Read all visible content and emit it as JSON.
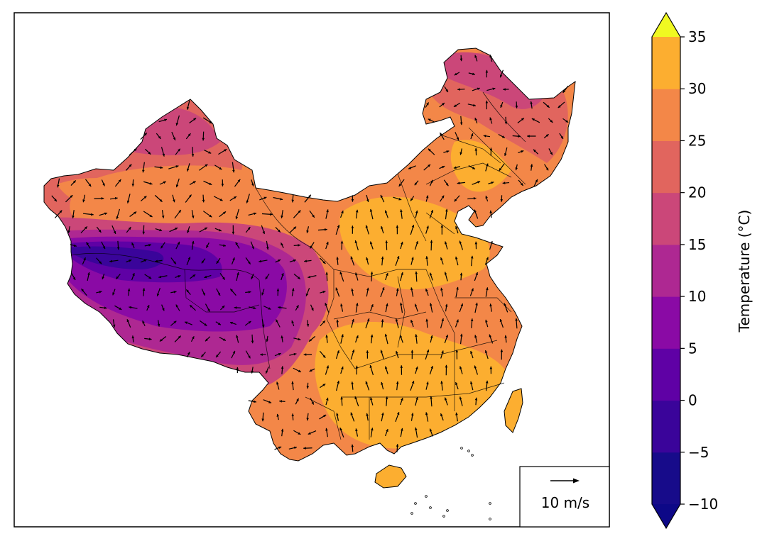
{
  "colorbar": {
    "label": "Temperature (°C)",
    "levels": [
      -10,
      -5,
      0,
      5,
      10,
      15,
      20,
      25,
      30,
      35
    ],
    "tick_labels": [
      "−10",
      "−5",
      "0",
      "5",
      "10",
      "15",
      "20",
      "25",
      "30",
      "35"
    ],
    "colors": [
      "#170b8a",
      "#3a049a",
      "#5f01a5",
      "#8a0aa5",
      "#ae2892",
      "#cb4779",
      "#e1655e",
      "#f38748",
      "#fcae30",
      "#f3d824"
    ],
    "under_color": "#0d0887",
    "over_color": "#f0f921",
    "extend": "both"
  },
  "quiver_key": {
    "label": "10 m/s",
    "speed": 10,
    "position": "bottom-right"
  },
  "arrow_color": "#000000",
  "map_region": "China",
  "temperature_field_description_colors": {
    "cold_plateau": "#5f01a5",
    "warm_south": "#fcae30"
  }
}
